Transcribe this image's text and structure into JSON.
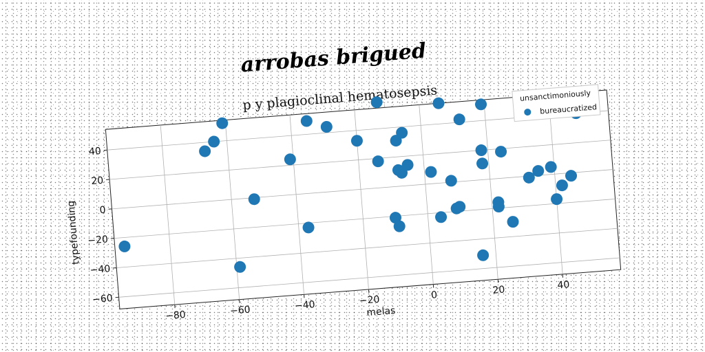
{
  "chart_data": {
    "type": "scatter",
    "suptitle": "arrobas brigued",
    "title": "p y plagioclinal hematosepsis",
    "xlabel": "melas",
    "ylabel": "typefounding",
    "xlim": [
      -97,
      58
    ],
    "ylim": [
      -68,
      54
    ],
    "xticks": [
      -80,
      -60,
      -40,
      -20,
      0,
      20,
      40
    ],
    "yticks": [
      -60,
      -40,
      -20,
      0,
      20,
      40
    ],
    "grid": true,
    "legend": {
      "title": "unsanctimoniously",
      "placement": "top-right"
    },
    "color": "#1f77b4",
    "series": [
      {
        "name": "bureaucratized",
        "x": [
          -94,
          -67,
          -64,
          -61,
          -59,
          -53,
          -41,
          -37,
          -35,
          -29,
          -20,
          -14,
          -13,
          -10,
          -9,
          -8,
          -8,
          -7,
          -6,
          -5,
          2,
          4,
          6,
          8,
          9,
          10,
          12,
          16,
          18,
          18,
          19,
          22,
          22,
          24,
          26,
          32,
          35,
          39,
          40,
          42,
          45,
          48
        ],
        "y": [
          -26,
          34,
          40,
          52,
          -46,
          -1,
          24,
          -23,
          49,
          44,
          33,
          18,
          58,
          -21,
          -27,
          11,
          31,
          9,
          36,
          14,
          8,
          -23,
          54,
          1,
          -18,
          -17,
          42,
          -51,
          20,
          11,
          51,
          -19,
          -16,
          18,
          -30,
          -1,
          3,
          5,
          -17,
          -8,
          -2,
          40
        ]
      }
    ]
  }
}
